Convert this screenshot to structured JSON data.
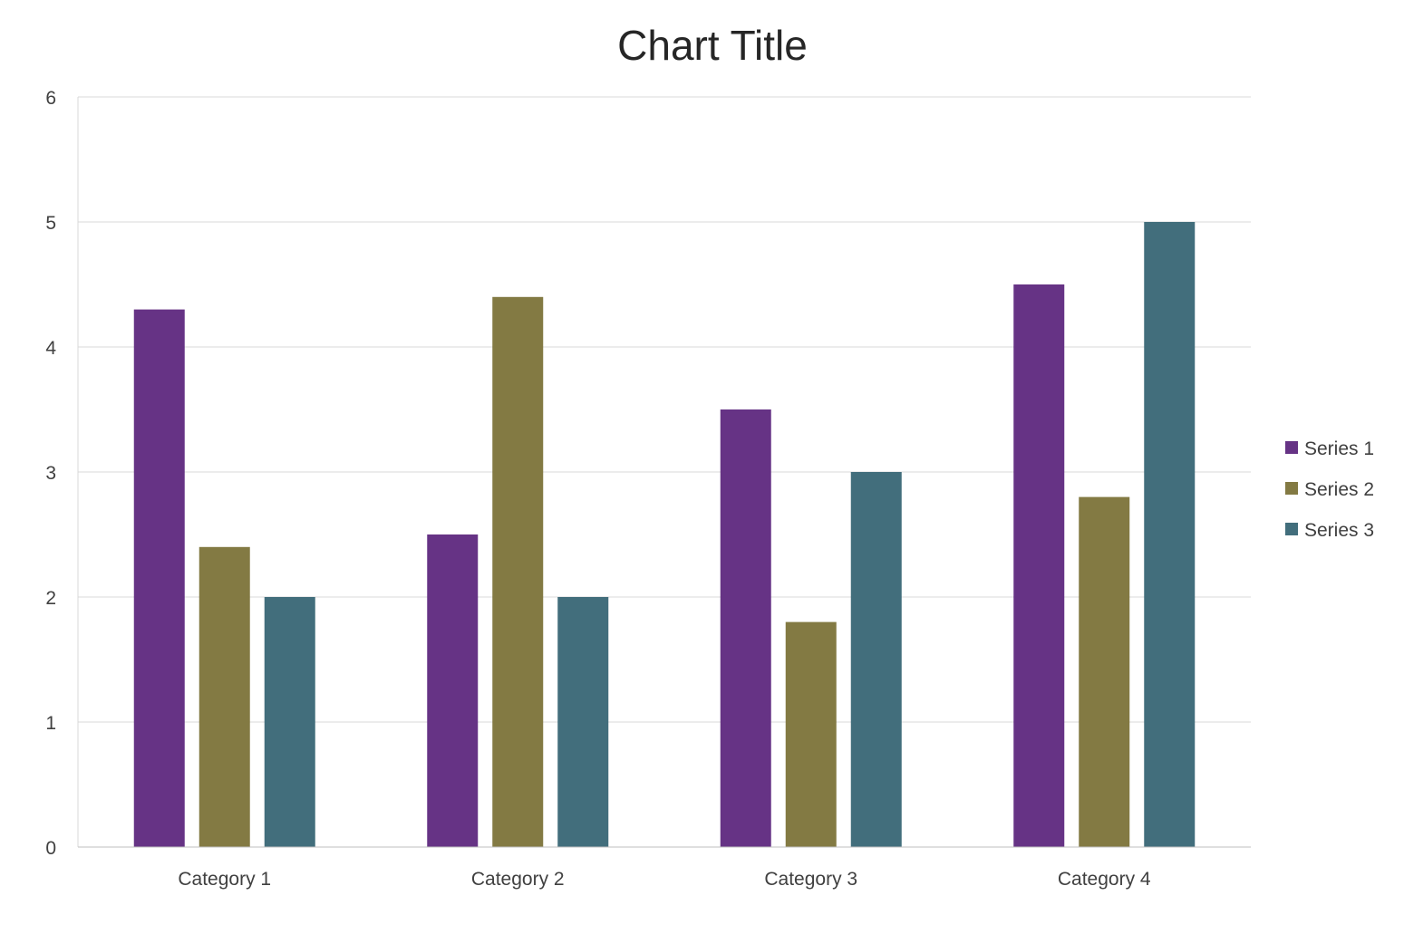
{
  "chart_data": {
    "type": "bar",
    "title": "Chart Title",
    "xlabel": "",
    "ylabel": "",
    "categories": [
      "Category 1",
      "Category 2",
      "Category 3",
      "Category 4"
    ],
    "series": [
      {
        "name": "Series 1",
        "values": [
          4.3,
          2.5,
          3.5,
          4.5
        ],
        "color": "#663385"
      },
      {
        "name": "Series 2",
        "values": [
          2.4,
          4.4,
          1.8,
          2.8
        ],
        "color": "#837A43"
      },
      {
        "name": "Series 3",
        "values": [
          2,
          2,
          3,
          5
        ],
        "color": "#426E7C"
      }
    ],
    "ylim": [
      0,
      6
    ],
    "yticks": [
      "0",
      "1",
      "2",
      "3",
      "4",
      "5",
      "6"
    ],
    "grid": true,
    "legend": "right",
    "colors": {
      "gridline": "#d9d9d9",
      "axis": "#bfbfbf",
      "text": "#404040",
      "title": "#262626"
    }
  }
}
